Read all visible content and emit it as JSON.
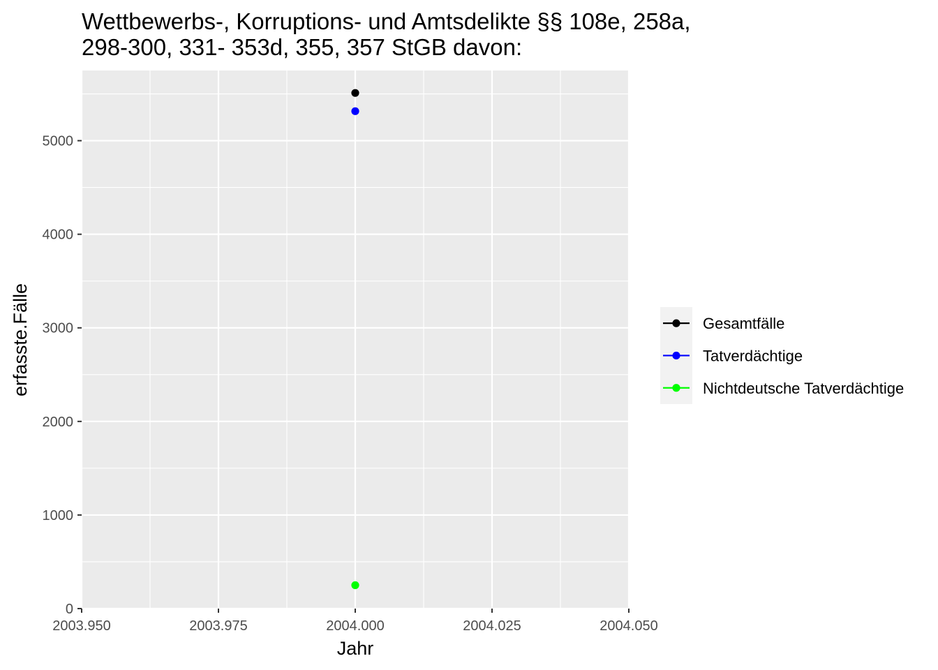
{
  "chart_data": {
    "type": "scatter",
    "title_lines": [
      "Wettbewerbs-, Korruptions- und Amtsdelikte §§ 108e, 258a,",
      "298-300, 331- 353d, 355, 357 StGB davon:"
    ],
    "xlabel": "Jahr",
    "ylabel": "erfasste.Fälle",
    "xlim": [
      2003.95,
      2004.05
    ],
    "ylim": [
      0,
      5750
    ],
    "x_ticks": [
      2003.95,
      2003.975,
      2004.0,
      2004.025,
      2004.05
    ],
    "x_tick_labels": [
      "2003.950",
      "2003.975",
      "2004.000",
      "2004.025",
      "2004.050"
    ],
    "y_ticks": [
      0,
      1000,
      2000,
      3000,
      4000,
      5000
    ],
    "y_tick_labels": [
      "0",
      "1000",
      "2000",
      "3000",
      "4000",
      "5000"
    ],
    "grid": true,
    "legend_position": "right",
    "series": [
      {
        "name": "Gesamtfälle",
        "color": "#000000",
        "points": [
          {
            "x": 2004.0,
            "y": 5510
          }
        ]
      },
      {
        "name": "Tatverdächtige",
        "color": "#0000ff",
        "points": [
          {
            "x": 2004.0,
            "y": 5315
          }
        ]
      },
      {
        "name": "Nichtdeutsche Tatverdächtige",
        "color": "#00ff00",
        "points": [
          {
            "x": 2004.0,
            "y": 250
          }
        ]
      }
    ]
  }
}
